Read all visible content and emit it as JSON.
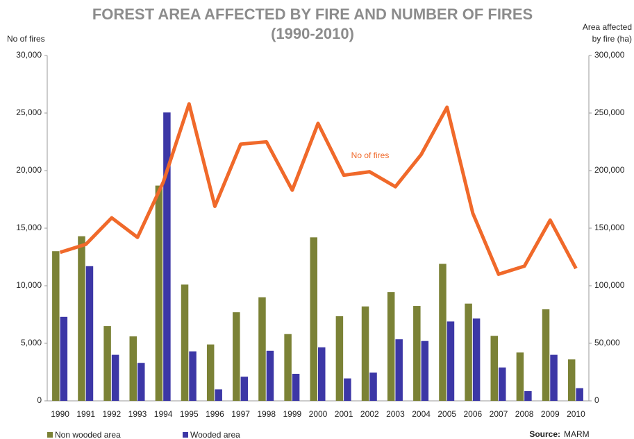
{
  "chart_data": {
    "type": "bar",
    "title": "FOREST AREA AFFECTED BY FIRE AND NUMBER OF FIRES",
    "subtitle": "(1990-2010)",
    "ylabel": "No of fires",
    "y2label": [
      "Area affected",
      "by fire (ha)"
    ],
    "annotation": "No of fires",
    "source_label": "Source:",
    "source": "MARM",
    "categories": [
      "1990",
      "1991",
      "1992",
      "1993",
      "1994",
      "1995",
      "1996",
      "1997",
      "1998",
      "1999",
      "2000",
      "2001",
      "2002",
      "2003",
      "2004",
      "2005",
      "2006",
      "2007",
      "2008",
      "2009",
      "2010"
    ],
    "series": [
      {
        "name": "Non wooded area",
        "color": "#7b8236",
        "type": "bar",
        "axis": "y2",
        "values": [
          130000,
          143000,
          65000,
          56000,
          187000,
          101000,
          49000,
          77000,
          90000,
          58000,
          142000,
          73500,
          82000,
          94500,
          82500,
          119000,
          84500,
          56500,
          42000,
          79500,
          36000
        ]
      },
      {
        "name": "Wooded area",
        "color": "#3c37a6",
        "type": "bar",
        "axis": "y2",
        "values": [
          73000,
          117000,
          40000,
          33000,
          250500,
          43000,
          10000,
          21000,
          43500,
          23500,
          46500,
          19500,
          24500,
          53500,
          52000,
          69000,
          71500,
          29000,
          8500,
          40000,
          11000
        ]
      },
      {
        "name": "No of fires",
        "color": "#f0692a",
        "type": "line",
        "axis": "y",
        "values": [
          12900,
          13600,
          15900,
          14200,
          19000,
          25800,
          16900,
          22300,
          22500,
          18300,
          24100,
          19600,
          19900,
          18600,
          21400,
          25500,
          16300,
          11000,
          11700,
          15700,
          11500
        ]
      }
    ],
    "ylim": [
      0,
      30000
    ],
    "yticks": [
      0,
      {
        "value": 5000,
        "label": "5,000"
      },
      {
        "value": 10000,
        "label": "10,000"
      },
      {
        "value": 15000,
        "label": "15,000"
      },
      {
        "value": 20000,
        "label": "20,000"
      },
      {
        "value": 25000,
        "label": "25,000"
      },
      {
        "value": 30000,
        "label": "30,000"
      }
    ],
    "y2lim": [
      0,
      300000
    ],
    "y2ticks": [
      0,
      {
        "value": 50000,
        "label": "50,000"
      },
      {
        "value": 100000,
        "label": "100,000"
      },
      {
        "value": 150000,
        "label": "150,000"
      },
      {
        "value": 200000,
        "label": "200,000"
      },
      {
        "value": 250000,
        "label": "250,000"
      },
      {
        "value": 300000,
        "label": "300,000"
      }
    ],
    "grid": false,
    "legend": "bottom-left"
  }
}
